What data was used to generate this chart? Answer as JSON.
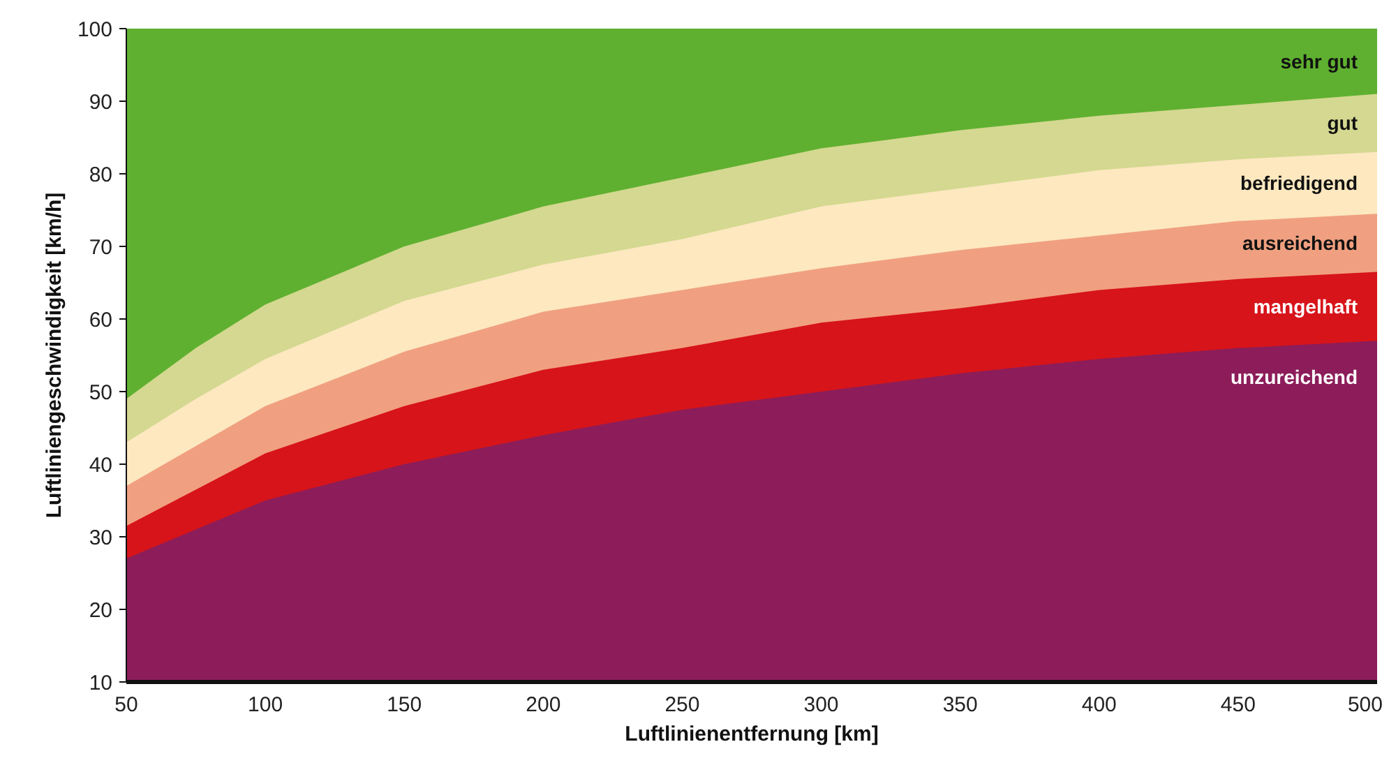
{
  "chart_data": {
    "type": "area",
    "xlabel": "Luftlinienentfernung [km]",
    "ylabel": "Luftliniengeschwindigkeit [km/h]",
    "x": [
      50,
      75,
      100,
      150,
      200,
      250,
      300,
      350,
      400,
      450,
      500
    ],
    "series": [
      {
        "name": "sehr gut",
        "color": "#5fb030",
        "values": [
          100,
          100,
          100,
          100,
          100,
          100,
          100,
          100,
          100,
          100,
          100
        ]
      },
      {
        "name": "gut",
        "color": "#d4d890",
        "values": [
          49,
          56,
          62,
          70,
          75.5,
          79.5,
          83.5,
          86,
          88,
          89.5,
          91
        ]
      },
      {
        "name": "befriedigend",
        "color": "#fde8c0",
        "values": [
          43,
          49,
          54.5,
          62.5,
          67.5,
          71,
          75.5,
          78,
          80.5,
          82,
          83
        ]
      },
      {
        "name": "ausreichend",
        "color": "#f0a080",
        "values": [
          37,
          42.5,
          48,
          55.5,
          61,
          64,
          67,
          69.5,
          71.5,
          73.5,
          74.5
        ]
      },
      {
        "name": "mangelhaft",
        "color": "#d7141a",
        "values": [
          31.5,
          36.5,
          41.5,
          48,
          53,
          56,
          59.5,
          61.5,
          64,
          65.5,
          66.5
        ]
      },
      {
        "name": "unzureichend",
        "color": "#8c1d5a",
        "values": [
          27,
          31,
          35,
          40,
          44,
          47.5,
          50,
          52.5,
          54.5,
          56,
          57
        ]
      }
    ],
    "xlim": [
      50,
      500
    ],
    "xticks": [
      50,
      100,
      150,
      200,
      250,
      300,
      350,
      400,
      450,
      500
    ],
    "ylim": [
      10,
      100
    ],
    "yticks": [
      10,
      20,
      30,
      40,
      50,
      60,
      70,
      80,
      90,
      100
    ],
    "legend": false
  }
}
